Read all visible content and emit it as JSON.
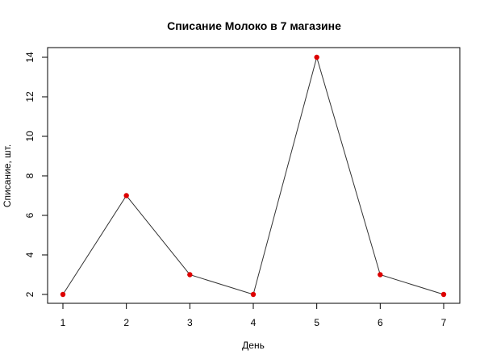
{
  "chart_data": {
    "type": "line",
    "title": "Списание Молоко в 7 магазине",
    "xlabel": "День",
    "ylabel": "Списание, шт.",
    "x": [
      1,
      2,
      3,
      4,
      5,
      6,
      7
    ],
    "y": [
      2,
      7,
      3,
      2,
      14,
      3,
      2
    ],
    "x_ticks": [
      "1",
      "2",
      "3",
      "4",
      "5",
      "6",
      "7"
    ],
    "y_ticks": [
      "2",
      "4",
      "6",
      "8",
      "10",
      "12",
      "14"
    ],
    "xlim": [
      1,
      7
    ],
    "ylim": [
      2,
      14
    ],
    "grid": false,
    "line_color": "#333333",
    "point_color": "#dd0000"
  }
}
